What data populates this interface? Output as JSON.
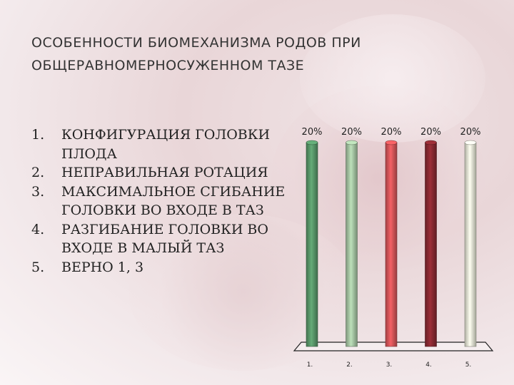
{
  "slide": {
    "title_lines": [
      "ОСОБЕННОСТИ БИОМЕХАНИЗМА РОДОВ ПРИ",
      "ОБЩЕРАВНОМЕРНОСУЖЕННОМ ТАЗЕ"
    ],
    "options": [
      {
        "num": "1.",
        "text": "КОНФИГУРАЦИЯ ГОЛОВКИ ПЛОДА"
      },
      {
        "num": "2.",
        "text": "НЕПРАВИЛЬНАЯ РОТАЦИЯ"
      },
      {
        "num": "3.",
        "text": "МАКСИМАЛЬНОЕ СГИБАНИЕ ГОЛОВКИ ВО ВХОДЕ В ТАЗ"
      },
      {
        "num": "4.",
        "text": "РАЗГИБАНИЕ ГОЛОВКИ ВО ВХОДЕ В МАЛЫЙ ТАЗ"
      },
      {
        "num": "5.",
        "text": "ВЕРНО 1, 3"
      }
    ]
  },
  "chart_data": {
    "type": "bar",
    "categories": [
      "1.",
      "2.",
      "3.",
      "4.",
      "5."
    ],
    "values": [
      20,
      20,
      20,
      20,
      20
    ],
    "data_labels": [
      "20%",
      "20%",
      "20%",
      "20%",
      "20%"
    ],
    "colors": [
      "#5a9a6b",
      "#a9c9a6",
      "#d9575a",
      "#8b2a32",
      "#e9ead8"
    ],
    "ylim": [
      0,
      20
    ],
    "grid": false
  }
}
